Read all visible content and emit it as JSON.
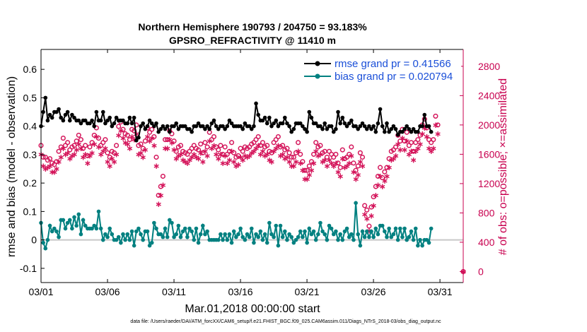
{
  "chart_data": {
    "type": "line",
    "title_line1": "Northern Hemisphere 190793 / 204750 = 93.183%",
    "title_line2": "GPSRO_REFRACTIVITY @ 11410 m",
    "xlabel": "Mar.01,2018 00:00:00 start",
    "ylabel_left": "rmse and bias (model - observation)",
    "ylabel_right": "# of obs: o=possible; ×=assimilated",
    "left_ylim": [
      -0.15,
      0.67
    ],
    "left_yticks": [
      -0.1,
      0,
      0.1,
      0.2,
      0.3,
      0.4,
      0.5,
      0.6
    ],
    "left_yticklabels": [
      "-0.1",
      "0",
      "0.1",
      "0.2",
      "0.3",
      "0.4",
      "0.5",
      "0.6"
    ],
    "right_ylim": [
      -150,
      3030
    ],
    "right_yticks": [
      0,
      400,
      800,
      1200,
      1600,
      2000,
      2400,
      2800
    ],
    "right_yticklabels": [
      "0",
      "400",
      "800",
      "1200",
      "1600",
      "2000",
      "2400",
      "2800"
    ],
    "xlim": [
      1.0,
      32.75
    ],
    "xticks": [
      1,
      6,
      11,
      16,
      21,
      26,
      31
    ],
    "xticklabels": [
      "03/01",
      "03/06",
      "03/11",
      "03/16",
      "03/21",
      "03/26",
      "03/31"
    ],
    "legend_position": "top-right",
    "colors": {
      "rmse": "#000000",
      "bias": "#008080",
      "obs": "#d4145a",
      "zero_line": "#c8c8c8"
    },
    "series": [
      {
        "name": "rmse grand pr = 0.41566",
        "key": "rmse",
        "values": [
          0.4,
          0.45,
          0.5,
          0.42,
          0.44,
          0.43,
          0.45,
          0.45,
          0.46,
          0.43,
          0.42,
          0.44,
          0.45,
          0.42,
          0.44,
          0.43,
          0.42,
          0.42,
          0.41,
          0.42,
          0.42,
          0.41,
          0.41,
          0.42,
          0.4,
          0.45,
          0.42,
          0.42,
          0.45,
          0.41,
          0.42,
          0.43,
          0.4,
          0.41,
          0.43,
          0.42,
          0.42,
          0.42,
          0.41,
          0.41,
          0.43,
          0.41,
          0.43,
          0.35,
          0.36,
          0.4,
          0.41,
          0.39,
          0.4,
          0.42,
          0.41,
          0.4,
          0.41,
          0.38,
          0.39,
          0.4,
          0.39,
          0.4,
          0.38,
          0.4,
          0.4,
          0.41,
          0.39,
          0.4,
          0.4,
          0.4,
          0.39,
          0.39,
          0.38,
          0.4,
          0.4,
          0.41,
          0.4,
          0.4,
          0.39,
          0.4,
          0.39,
          0.41,
          0.42,
          0.4,
          0.39,
          0.4,
          0.4,
          0.39,
          0.4,
          0.42,
          0.41,
          0.4,
          0.4,
          0.4,
          0.4,
          0.39,
          0.41,
          0.4,
          0.4,
          0.39,
          0.4,
          0.48,
          0.44,
          0.42,
          0.42,
          0.43,
          0.41,
          0.43,
          0.4,
          0.41,
          0.42,
          0.4,
          0.41,
          0.41,
          0.43,
          0.41,
          0.4,
          0.38,
          0.39,
          0.41,
          0.41,
          0.41,
          0.4,
          0.39,
          0.38,
          0.45,
          0.43,
          0.41,
          0.41,
          0.4,
          0.4,
          0.39,
          0.41,
          0.39,
          0.4,
          0.4,
          0.38,
          0.39,
          0.45,
          0.41,
          0.43,
          0.41,
          0.4,
          0.41,
          0.42,
          0.4,
          0.4,
          0.39,
          0.4,
          0.41,
          0.4,
          0.39,
          0.4,
          0.39,
          0.4,
          0.38,
          0.41,
          0.46,
          0.4,
          0.38,
          0.41,
          0.38,
          0.39,
          0.4,
          0.39,
          0.37,
          0.38,
          0.38,
          0.39,
          0.4,
          0.39,
          0.38,
          0.39,
          0.38,
          0.38,
          0.4,
          0.4,
          0.44,
          0.4,
          0.4,
          0.38
        ]
      },
      {
        "name": "bias grand pr = 0.020794",
        "key": "bias",
        "values": [
          0.06,
          -0.01,
          -0.03,
          0.0,
          0.05,
          0.03,
          0.04,
          0.03,
          0.01,
          0.07,
          0.07,
          0.04,
          0.06,
          0.07,
          0.04,
          0.08,
          0.05,
          0.09,
          0.02,
          0.07,
          0.05,
          0.04,
          0.04,
          0.04,
          0.05,
          0.04,
          0.1,
          0.04,
          0.0,
          0.02,
          0.01,
          0.04,
          0.02,
          0.0,
          0.0,
          0.01,
          -0.01,
          0.02,
          0.0,
          0.02,
          0.0,
          0.03,
          -0.02,
          0.03,
          0.04,
          0.02,
          0.0,
          0.03,
          0.03,
          -0.02,
          -0.01,
          0.06,
          0.04,
          0.02,
          0.02,
          0.01,
          0.04,
          0.01,
          0.07,
          0.06,
          0.01,
          0.02,
          0.05,
          0.01,
          0.03,
          0.04,
          0.01,
          0.04,
          0.03,
          0.0,
          0.04,
          -0.01,
          0.02,
          0.05,
          0.02,
          0.03,
          0.0,
          0.0,
          0.0,
          0.0,
          0.0,
          0.02,
          0.0,
          0.02,
          0.0,
          0.02,
          -0.01,
          0.03,
          0.01,
          0.02,
          0.04,
          0.01,
          0.0,
          0.02,
          0.01,
          0.04,
          -0.01,
          0.02,
          0.01,
          0.03,
          0.0,
          0.02,
          -0.01,
          0.06,
          0.02,
          0.01,
          0.05,
          -0.02,
          0.05,
          0.01,
          0.03,
          0.0,
          0.02,
          0.01,
          -0.01,
          0.0,
          0.01,
          0.03,
          0.01,
          0.03,
          -0.01,
          0.04,
          0.02,
          0.03,
          0.0,
          0.02,
          0.06,
          0.03,
          0.02,
          0.0,
          0.05,
          0.04,
          0.02,
          0.03,
          0.0,
          0.02,
          0.0,
          0.03,
          0.04,
          0.01,
          0.02,
          0.0,
          0.13,
          0.02,
          -0.02,
          0.03,
          0.01,
          0.03,
          0.01,
          0.03,
          0.01,
          0.04,
          0.02,
          0.05,
          0.05,
          0.03,
          0.01,
          0.04,
          0.01,
          0.02,
          0.04,
          0.0,
          0.04,
          0.01,
          0.04,
          0.0,
          0.01,
          0.03,
          0.0,
          0.04,
          -0.02,
          0.0,
          -0.02,
          0.0,
          0.0,
          -0.01,
          0.04
        ]
      },
      {
        "name": "possible",
        "key": "possible",
        "values": [
          1720,
          1560,
          1560,
          1520,
          1540,
          1480,
          1460,
          1500,
          1640,
          1700,
          1820,
          1720,
          1760,
          1660,
          1700,
          1720,
          1780,
          1860,
          1800,
          1680,
          1720,
          1580,
          1700,
          1760,
          1860,
          1960,
          1820,
          1720,
          1760,
          1800,
          1620,
          1560,
          1640,
          1620,
          1720,
          1980,
          2040,
          1940,
          1880,
          1860,
          1800,
          1940,
          1920,
          2000,
          1720,
          1740,
          1680,
          1780,
          1960,
          1900,
          1940,
          1840,
          1560,
          1040,
          1160,
          1300,
          1800,
          1800,
          1920,
          1880,
          1780,
          1640,
          1700,
          1720,
          1640,
          1620,
          1600,
          1640,
          1680,
          1720,
          1680,
          1660,
          1740,
          1620,
          1760,
          1700,
          1900,
          1800,
          1840,
          1700,
          1660,
          1720,
          1600,
          1700,
          1600,
          1640,
          1760,
          1620,
          1560,
          1580,
          1680,
          1640,
          1700,
          1680,
          1700,
          1740,
          1760,
          1800,
          1840,
          1720,
          1760,
          1700,
          1720,
          1640,
          1620,
          1760,
          1800,
          1840,
          1700,
          1720,
          1660,
          1680,
          1620,
          1560,
          1560,
          1620,
          1760,
          1600,
          1500,
          1380,
          1380,
          1440,
          1500,
          1600,
          1760,
          1700,
          1720,
          1620,
          1640,
          1560,
          1640,
          1600,
          1560,
          1600,
          1480,
          1420,
          1660,
          1540,
          1560,
          1600,
          1700,
          1480,
          1380,
          1440,
          1620,
          1560,
          900,
          840,
          620,
          880,
          1020,
          1160,
          1300,
          1420,
          1280,
          1360,
          1420,
          1540,
          1640,
          1660,
          1700,
          1860,
          1780,
          1940,
          1780,
          1900,
          1720,
          1760,
          1640,
          1760,
          1800,
          1860,
          2000,
          2080,
          1960,
          1800,
          1760,
          1800,
          2120,
          2000
        ]
      },
      {
        "name": "assimilated",
        "key": "assimilated",
        "values": [
          1600,
          1440,
          1400,
          1420,
          1440,
          1360,
          1360,
          1400,
          1500,
          1560,
          1680,
          1600,
          1620,
          1540,
          1580,
          1600,
          1660,
          1740,
          1680,
          1560,
          1600,
          1480,
          1580,
          1620,
          1740,
          1840,
          1700,
          1600,
          1640,
          1680,
          1500,
          1440,
          1540,
          1500,
          1600,
          1860,
          1920,
          1820,
          1760,
          1740,
          1680,
          1840,
          1800,
          1880,
          1600,
          1620,
          1560,
          1660,
          1840,
          1780,
          1820,
          1720,
          1440,
          920,
          1040,
          1180,
          1680,
          1680,
          1800,
          1760,
          1660,
          1540,
          1580,
          1600,
          1520,
          1500,
          1480,
          1520,
          1560,
          1600,
          1560,
          1540,
          1620,
          1500,
          1640,
          1580,
          1780,
          1680,
          1720,
          1600,
          1540,
          1600,
          1480,
          1580,
          1480,
          1520,
          1640,
          1500,
          1440,
          1460,
          1560,
          1520,
          1580,
          1560,
          1580,
          1620,
          1640,
          1680,
          1720,
          1600,
          1640,
          1580,
          1600,
          1520,
          1500,
          1640,
          1680,
          1720,
          1580,
          1600,
          1540,
          1560,
          1500,
          1440,
          1440,
          1500,
          1640,
          1480,
          1380,
          1260,
          1260,
          1320,
          1380,
          1480,
          1640,
          1580,
          1600,
          1500,
          1520,
          1440,
          1520,
          1480,
          1440,
          1480,
          1360,
          1300,
          1540,
          1420,
          1440,
          1480,
          1580,
          1360,
          1260,
          1320,
          1500,
          1440,
          780,
          720,
          560,
          760,
          900,
          1040,
          1180,
          1300,
          1160,
          1240,
          1300,
          1420,
          1520,
          1540,
          1580,
          1740,
          1660,
          1820,
          1660,
          1780,
          1600,
          1640,
          1520,
          1640,
          1680,
          1740,
          1880,
          1960,
          1840,
          1680,
          1640,
          1680,
          2000,
          1880
        ]
      }
    ],
    "last_point": {
      "x": 32.75,
      "possible": 0,
      "assimilated": 0
    },
    "legend": [
      {
        "label": "rmse grand pr = 0.41566",
        "key": "rmse"
      },
      {
        "label": "bias grand pr = 0.020794",
        "key": "bias"
      }
    ]
  },
  "footer": "data file: /Users/raeder/DAI/ATM_forcXX/CAM6_setup/f.e21.FHIST_BGC.f09_025.CAM6assim.011/Diags_NTrS_2018-03/obs_diag_output.nc"
}
